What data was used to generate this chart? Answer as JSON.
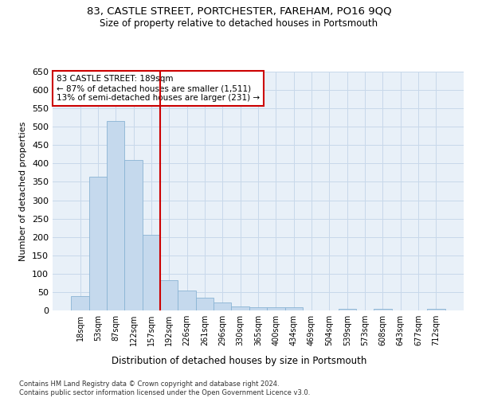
{
  "title_line1": "83, CASTLE STREET, PORTCHESTER, FAREHAM, PO16 9QQ",
  "title_line2": "Size of property relative to detached houses in Portsmouth",
  "xlabel": "Distribution of detached houses by size in Portsmouth",
  "ylabel": "Number of detached properties",
  "footnote": "Contains HM Land Registry data © Crown copyright and database right 2024.\nContains public sector information licensed under the Open Government Licence v3.0.",
  "bar_labels": [
    "18sqm",
    "53sqm",
    "87sqm",
    "122sqm",
    "157sqm",
    "192sqm",
    "226sqm",
    "261sqm",
    "296sqm",
    "330sqm",
    "365sqm",
    "400sqm",
    "434sqm",
    "469sqm",
    "504sqm",
    "539sqm",
    "573sqm",
    "608sqm",
    "643sqm",
    "677sqm",
    "712sqm"
  ],
  "bar_values": [
    38,
    365,
    515,
    410,
    205,
    83,
    55,
    35,
    22,
    11,
    8,
    8,
    9,
    0,
    0,
    5,
    0,
    5,
    0,
    0,
    5
  ],
  "bar_color": "#c5d9ed",
  "bar_edge_color": "#8ab4d4",
  "highlight_line_color": "#cc0000",
  "annotation_text": "83 CASTLE STREET: 189sqm\n← 87% of detached houses are smaller (1,511)\n13% of semi-detached houses are larger (231) →",
  "annotation_box_color": "#ffffff",
  "annotation_box_edge_color": "#cc0000",
  "ylim": [
    0,
    650
  ],
  "yticks": [
    0,
    50,
    100,
    150,
    200,
    250,
    300,
    350,
    400,
    450,
    500,
    550,
    600,
    650
  ],
  "grid_color": "#c8d8ea",
  "bg_color": "#e8f0f8"
}
